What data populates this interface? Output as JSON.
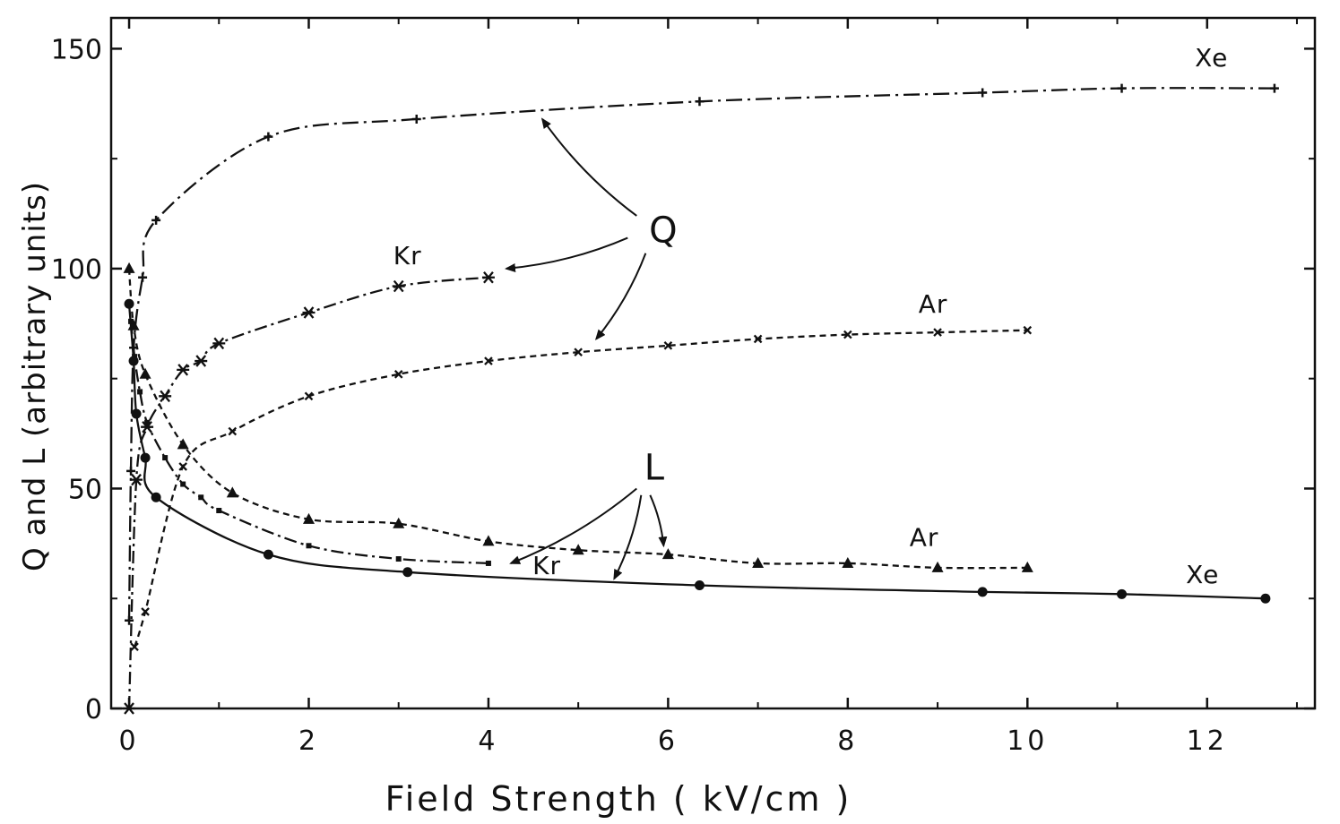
{
  "chart_data": {
    "type": "line",
    "title": "",
    "xlabel": "Field Strength ( kV/cm )",
    "ylabel": "Q and L (arbitrary units)",
    "xlim": [
      -0.2,
      13.2
    ],
    "ylim": [
      0,
      157
    ],
    "x_ticks": [
      0,
      2,
      4,
      6,
      8,
      10,
      12
    ],
    "x_tick_labels": [
      "0",
      "2",
      "4",
      "6",
      "8",
      "10",
      "12"
    ],
    "y_ticks": [
      0,
      50,
      100,
      150
    ],
    "y_tick_labels": [
      "0",
      "50",
      "100",
      "150"
    ],
    "grid": false,
    "series": [
      {
        "name": "Xe",
        "group": "Q",
        "marker": "plus",
        "dash": "18 6 3 6",
        "x": [
          0,
          0.02,
          0.05,
          0.15,
          0.3,
          1.55,
          3.2,
          6.35,
          9.5,
          11.05,
          12.75
        ],
        "y": [
          20,
          54,
          82,
          98,
          111,
          130,
          134,
          138,
          140,
          141,
          141
        ]
      },
      {
        "name": "Kr",
        "group": "Q",
        "marker": "asterisk",
        "dash": "14 5 3 5",
        "x": [
          0,
          0.08,
          0.2,
          0.4,
          0.6,
          0.8,
          1.0,
          2.0,
          3.0,
          4.0
        ],
        "y": [
          0,
          52,
          64,
          71,
          77,
          79,
          83,
          90,
          96,
          98
        ]
      },
      {
        "name": "Ar",
        "group": "Q",
        "marker": "cross",
        "dash": "7 5",
        "x": [
          0.06,
          0.18,
          0.6,
          1.15,
          2.0,
          3.0,
          4.0,
          5.0,
          6.0,
          7.0,
          8.0,
          9.0,
          10.0
        ],
        "y": [
          14,
          22,
          55,
          63,
          71,
          76,
          79,
          81,
          82.5,
          84,
          85,
          85.5,
          86
        ]
      },
      {
        "name": "Ar",
        "group": "L",
        "marker": "triangle",
        "dash": "7 5",
        "x": [
          0,
          0.05,
          0.18,
          0.6,
          1.15,
          2.0,
          3.0,
          4.0,
          5.0,
          6.0,
          7.0,
          8.0,
          9.0,
          10.0
        ],
        "y": [
          100,
          87,
          76,
          60,
          49,
          43,
          42,
          38,
          36,
          35,
          33,
          33,
          32,
          32
        ]
      },
      {
        "name": "Kr",
        "group": "L",
        "marker": "square",
        "dash": "14 5 3 5",
        "x": [
          0.02,
          0.06,
          0.12,
          0.2,
          0.4,
          0.6,
          0.8,
          1.0,
          2.0,
          3.0,
          4.0
        ],
        "y": [
          88,
          80,
          72,
          65,
          57,
          51,
          48,
          45,
          37,
          34,
          33
        ]
      },
      {
        "name": "Xe",
        "group": "L",
        "marker": "dot",
        "dash": "",
        "x": [
          0,
          0.05,
          0.08,
          0.18,
          0.3,
          1.55,
          3.1,
          6.35,
          9.5,
          11.05,
          12.65
        ],
        "y": [
          92,
          79,
          67,
          57,
          48,
          35,
          31,
          28,
          26.5,
          26,
          25
        ]
      }
    ],
    "annotations": [
      {
        "text": "Xe",
        "x": 12.05,
        "y": 146
      },
      {
        "text": "Kr",
        "x": 3.1,
        "y": 101
      },
      {
        "text": "Ar",
        "x": 8.95,
        "y": 90
      },
      {
        "text": "Q",
        "x": 5.95,
        "y": 106
      },
      {
        "text": "L",
        "x": 5.85,
        "y": 52
      },
      {
        "text": "Ar",
        "x": 8.85,
        "y": 37
      },
      {
        "text": "Kr",
        "x": 4.65,
        "y": 30.5
      },
      {
        "text": "Xe",
        "x": 11.95,
        "y": 28.5
      }
    ],
    "arrows": [
      {
        "from": [
          5.65,
          112
        ],
        "to": [
          4.6,
          134
        ]
      },
      {
        "from": [
          5.55,
          107
        ],
        "to": [
          4.2,
          100
        ]
      },
      {
        "from": [
          5.75,
          103.5
        ],
        "to": [
          5.2,
          84
        ]
      },
      {
        "from": [
          5.65,
          50
        ],
        "to": [
          4.25,
          33
        ]
      },
      {
        "from": [
          5.7,
          48.5
        ],
        "to": [
          5.4,
          29.5
        ]
      },
      {
        "from": [
          5.8,
          48.5
        ],
        "to": [
          5.95,
          37
        ]
      }
    ]
  }
}
